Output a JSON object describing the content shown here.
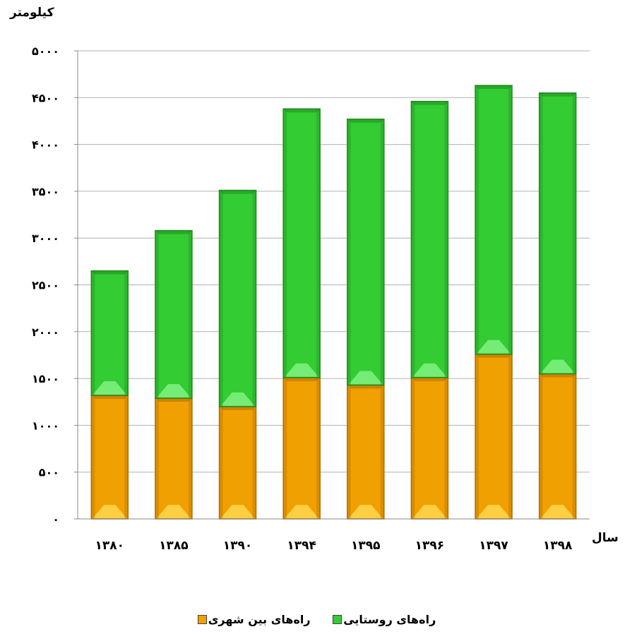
{
  "chart_data": {
    "type": "bar",
    "stacked": true,
    "ylabel": "کیلومتر",
    "xlabel": "سال",
    "categories": [
      "۱۳۸۰",
      "۱۳۸۵",
      "۱۳۹۰",
      "۱۳۹۴",
      "۱۳۹۵",
      "۱۳۹۶",
      "۱۳۹۷",
      "۱۳۹۸"
    ],
    "series": [
      {
        "name": "راه‌های بین شهری",
        "color": "#f0a000",
        "values": [
          1320,
          1290,
          1200,
          1510,
          1430,
          1510,
          1760,
          1550
        ]
      },
      {
        "name": "راه‌های روستایی",
        "color": "#33cc33",
        "values": [
          1330,
          1790,
          2310,
          2870,
          2840,
          2950,
          2870,
          3000
        ]
      }
    ],
    "ylim": [
      0,
      5000
    ],
    "yticks": [
      0,
      500,
      1000,
      1500,
      2000,
      2500,
      3000,
      3500,
      4000,
      4500,
      5000
    ],
    "ytick_labels": [
      "۰",
      "۵۰۰",
      "۱۰۰۰",
      "۱۵۰۰",
      "۲۰۰۰",
      "۲۵۰۰",
      "۳۰۰۰",
      "۳۵۰۰",
      "۴۰۰۰",
      "۴۵۰۰",
      "۵۰۰۰"
    ],
    "grid": true,
    "legend_position": "bottom"
  }
}
